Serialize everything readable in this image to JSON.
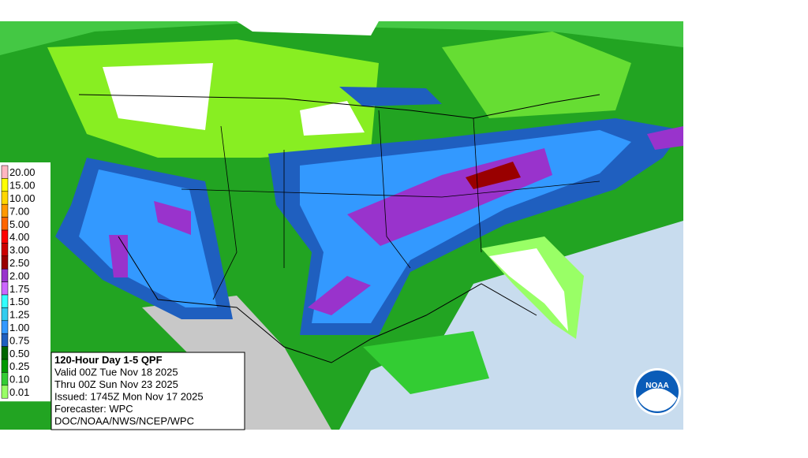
{
  "legend": {
    "items": [
      {
        "label": "20.00",
        "color": "#ffb6c1"
      },
      {
        "label": "15.00",
        "color": "#ffff00"
      },
      {
        "label": "10.00",
        "color": "#ffd700"
      },
      {
        "label": "7.00",
        "color": "#ff9900"
      },
      {
        "label": "5.00",
        "color": "#ff6600"
      },
      {
        "label": "4.00",
        "color": "#ff0000"
      },
      {
        "label": "3.00",
        "color": "#cc0000"
      },
      {
        "label": "2.50",
        "color": "#990000"
      },
      {
        "label": "2.00",
        "color": "#9933cc"
      },
      {
        "label": "1.75",
        "color": "#cc66ff"
      },
      {
        "label": "1.50",
        "color": "#33ffff"
      },
      {
        "label": "1.25",
        "color": "#33ccee"
      },
      {
        "label": "1.00",
        "color": "#3399ff"
      },
      {
        "label": "0.75",
        "color": "#1f5fbf"
      },
      {
        "label": "0.50",
        "color": "#006600"
      },
      {
        "label": "0.25",
        "color": "#009900"
      },
      {
        "label": "0.10",
        "color": "#33cc33"
      },
      {
        "label": "0.01",
        "color": "#99ff66"
      }
    ]
  },
  "info": {
    "lines": [
      "120-Hour Day 1-5 QPF",
      "Valid 00Z Tue Nov 18 2025",
      "Thru 00Z Sun Nov 23 2025",
      "Issued: 1745Z Mon Nov 17 2025",
      "Forecaster: WPC",
      "DOC/NOAA/NWS/NCEP/WPC"
    ]
  },
  "logo": {
    "text": "NOAA"
  }
}
